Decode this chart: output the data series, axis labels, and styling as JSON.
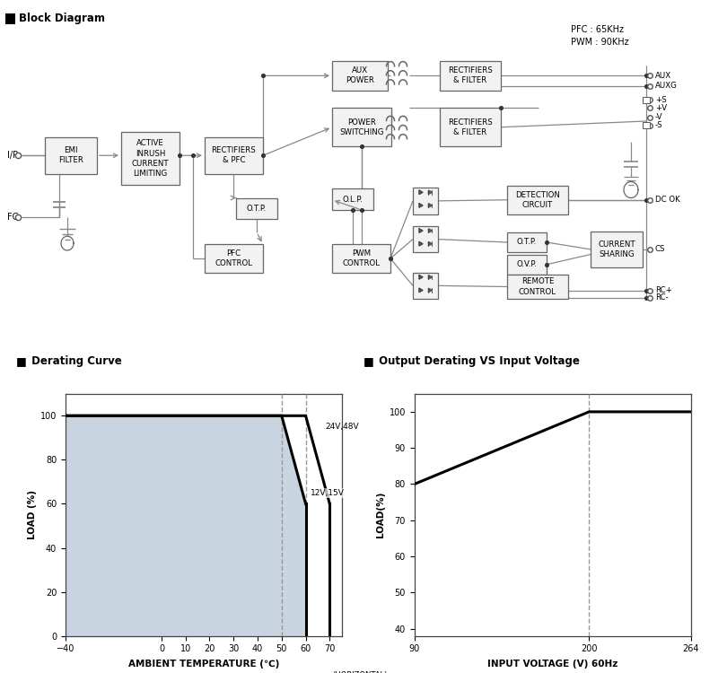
{
  "bg_color": "#ffffff",
  "box_fc": "#f2f2f2",
  "box_ec": "#666666",
  "line_color": "#888888",
  "derating_fill": "#c8d4df",
  "pfc_freq": "PFC : 65KHz",
  "pwm_freq": "PWM : 90KHz",
  "temp_xticks": [
    -40,
    0,
    10,
    20,
    30,
    40,
    50,
    60,
    70
  ],
  "temp_yticks": [
    0,
    20,
    40,
    60,
    80,
    100
  ],
  "volt_xticks": [
    90,
    200,
    264
  ],
  "volt_yticks": [
    40,
    50,
    60,
    70,
    80,
    90,
    100
  ]
}
